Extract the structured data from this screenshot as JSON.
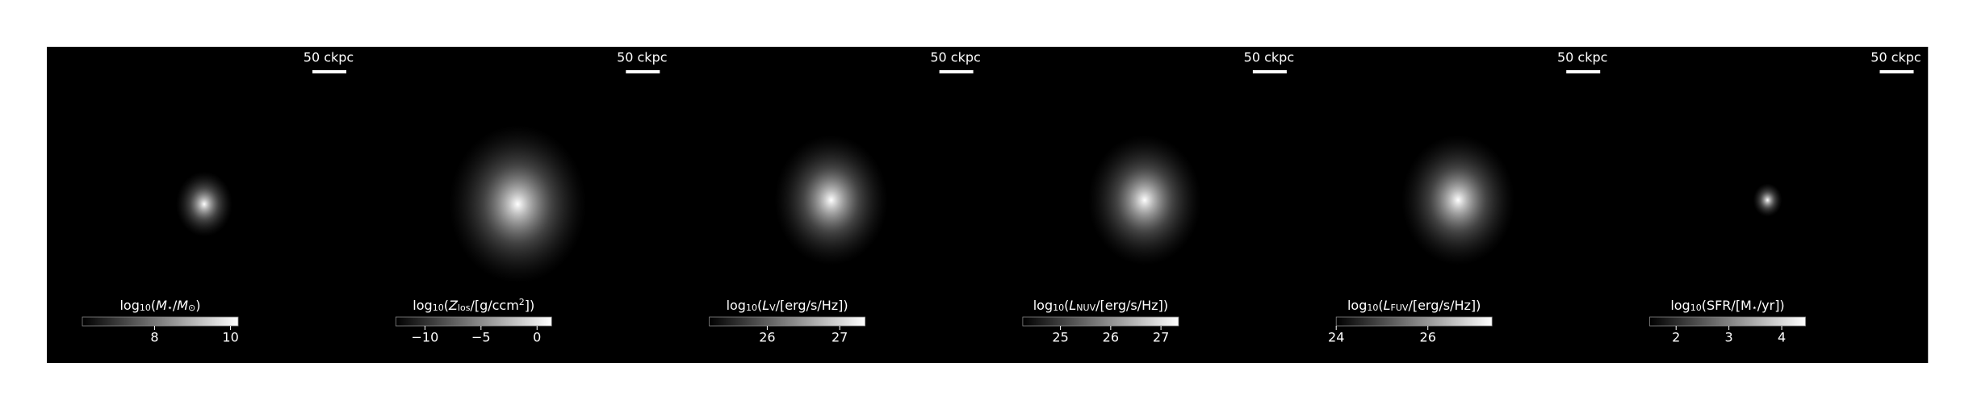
{
  "chart_data": [
    {
      "type": "image",
      "scale_bar": "50 ckpc",
      "colorbar": {
        "label": [
          {
            "t": "log"
          },
          {
            "t": "10",
            "sub": true
          },
          {
            "t": "("
          },
          {
            "t": "M",
            "it": true
          },
          {
            "t": "⋆",
            "sub": true
          },
          {
            "t": "/"
          },
          {
            "t": "M",
            "it": true
          },
          {
            "t": "⊙",
            "sub": true
          },
          {
            "t": ")"
          }
        ],
        "clim": [
          6.1,
          10.2
        ],
        "ticks": [
          8,
          10
        ]
      }
    },
    {
      "type": "image",
      "scale_bar": "50 ckpc",
      "colorbar": {
        "label": [
          {
            "t": "log"
          },
          {
            "t": "10",
            "sub": true
          },
          {
            "t": "("
          },
          {
            "t": "Z",
            "it": true
          },
          {
            "t": "los",
            "sub": true
          },
          {
            "t": "/[g/ccm"
          },
          {
            "t": "2",
            "sup": true
          },
          {
            "t": "])"
          }
        ],
        "clim": [
          -12.6,
          1.3
        ],
        "ticks": [
          {
            "value": -10,
            "label": "−10"
          },
          {
            "value": -5,
            "label": "−5"
          },
          0
        ]
      }
    },
    {
      "type": "image",
      "scale_bar": "50 ckpc",
      "colorbar": {
        "label": [
          {
            "t": "log"
          },
          {
            "t": "10",
            "sub": true
          },
          {
            "t": "("
          },
          {
            "t": "L",
            "it": true
          },
          {
            "t": "V",
            "sub": true
          },
          {
            "t": "/[erg/s/Hz])"
          }
        ],
        "clim": [
          25.2,
          27.35
        ],
        "ticks": [
          26,
          27
        ]
      }
    },
    {
      "type": "image",
      "scale_bar": "50 ckpc",
      "colorbar": {
        "label": [
          {
            "t": "log"
          },
          {
            "t": "10",
            "sub": true
          },
          {
            "t": "("
          },
          {
            "t": "L",
            "it": true
          },
          {
            "t": "NUV",
            "sub": true
          },
          {
            "t": "/[erg/s/Hz])"
          }
        ],
        "clim": [
          24.25,
          27.35
        ],
        "ticks": [
          25,
          26,
          27
        ]
      }
    },
    {
      "type": "image",
      "scale_bar": "50 ckpc",
      "colorbar": {
        "label": [
          {
            "t": "log"
          },
          {
            "t": "10",
            "sub": true
          },
          {
            "t": "("
          },
          {
            "t": "L",
            "it": true
          },
          {
            "t": "FUV",
            "sub": true
          },
          {
            "t": "/[erg/s/Hz])"
          }
        ],
        "clim": [
          24,
          27.4
        ],
        "ticks": [
          24,
          26
        ]
      }
    },
    {
      "type": "image",
      "scale_bar": "50 ckpc",
      "colorbar": {
        "label": [
          {
            "t": "log"
          },
          {
            "t": "10",
            "sub": true
          },
          {
            "t": "(SFR/[M"
          },
          {
            "t": "⋆",
            "sub": true
          },
          {
            "t": "/yr])"
          }
        ],
        "clim": [
          1.5,
          4.45
        ],
        "ticks": [
          2,
          3,
          4
        ]
      }
    }
  ]
}
